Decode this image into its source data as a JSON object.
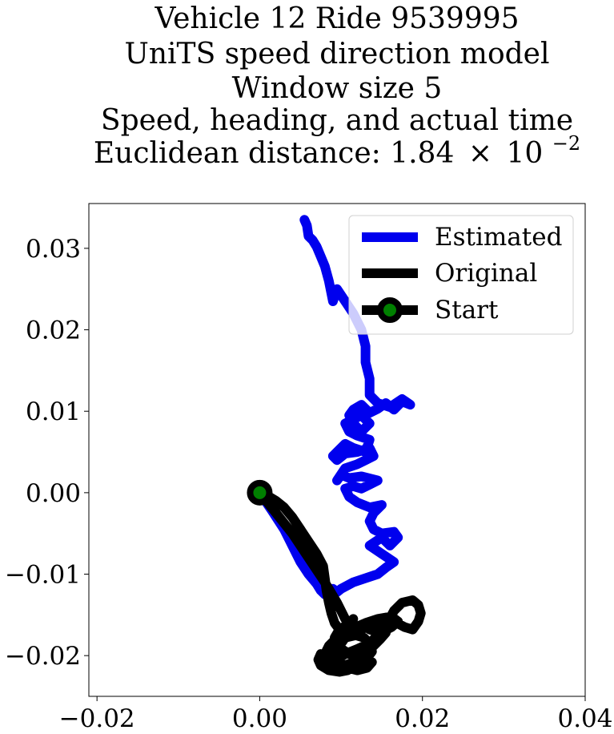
{
  "chart_data": {
    "type": "line",
    "title_lines": [
      "Vehicle 12 Ride 9539995",
      "UniTS speed direction model",
      "Window size 5",
      "Speed, heading, and actual time"
    ],
    "title_distance_prefix": "Euclidean distance: 1.84",
    "title_distance_times": "×",
    "title_distance_base": "10",
    "title_distance_exponent": "−2",
    "xlabel": "",
    "ylabel": "",
    "xlim": [
      -0.021,
      0.04
    ],
    "ylim": [
      -0.025,
      0.0355
    ],
    "x_ticks": [
      -0.02,
      0.0,
      0.02,
      0.04
    ],
    "x_tick_labels": [
      "−0.02",
      "0.00",
      "0.02",
      "0.04"
    ],
    "y_ticks": [
      -0.02,
      -0.01,
      0.0,
      0.01,
      0.02,
      0.03
    ],
    "y_tick_labels": [
      "−0.02",
      "−0.01",
      "0.00",
      "0.01",
      "0.02",
      "0.03"
    ],
    "grid": false,
    "legend_position": "top-right",
    "colors": {
      "estimated": "#0000ee",
      "original": "#000000",
      "start_marker": "#008000"
    },
    "series": [
      {
        "name": "Estimated",
        "x": [
          0.0,
          0.0015,
          0.003,
          0.004,
          0.005,
          0.006,
          0.007,
          0.0075,
          0.008,
          0.0085,
          0.009,
          0.0095,
          0.01,
          0.0115,
          0.013,
          0.0145,
          0.0155,
          0.0165,
          0.015,
          0.0135,
          0.015,
          0.016,
          0.017,
          0.0165,
          0.015,
          0.014,
          0.0135,
          0.014,
          0.015,
          0.0135,
          0.012,
          0.011,
          0.0105,
          0.0115,
          0.0125,
          0.0135,
          0.0145,
          0.0125,
          0.011,
          0.01,
          0.0095,
          0.0105,
          0.012,
          0.013,
          0.014,
          0.0135,
          0.012,
          0.0105,
          0.0095,
          0.009,
          0.0095,
          0.0105,
          0.0115,
          0.013,
          0.0135,
          0.012,
          0.011,
          0.0105,
          0.0115,
          0.0125,
          0.0135,
          0.0125,
          0.0115,
          0.011,
          0.0115,
          0.0125,
          0.0135,
          0.0145,
          0.0155,
          0.0165,
          0.0175,
          0.0185,
          0.0175,
          0.016,
          0.0145,
          0.0135,
          0.0135,
          0.013,
          0.013,
          0.0125,
          0.0115,
          0.0105,
          0.0095,
          0.009,
          0.0085,
          0.008,
          0.0075,
          0.007,
          0.0065,
          0.006,
          0.0058,
          0.0055
        ],
        "y": [
          0.0,
          -0.0022,
          -0.0045,
          -0.0065,
          -0.0085,
          -0.01,
          -0.0112,
          -0.012,
          -0.0125,
          -0.012,
          -0.0118,
          -0.0122,
          -0.0118,
          -0.011,
          -0.0105,
          -0.01,
          -0.0092,
          -0.0085,
          -0.0075,
          -0.0065,
          -0.0055,
          -0.0065,
          -0.0055,
          -0.0048,
          -0.005,
          -0.0045,
          -0.0035,
          -0.0025,
          -0.0015,
          -0.0018,
          -0.0012,
          -0.0005,
          0.0005,
          0.0008,
          0.0005,
          0.001,
          0.0015,
          0.002,
          0.0018,
          0.0022,
          0.0015,
          0.003,
          0.0035,
          0.004,
          0.0045,
          0.0055,
          0.005,
          0.0048,
          0.004,
          0.0045,
          0.005,
          0.006,
          0.0055,
          0.005,
          0.0065,
          0.007,
          0.0075,
          0.0085,
          0.009,
          0.0095,
          0.0085,
          0.0075,
          0.0085,
          0.0095,
          0.0102,
          0.0108,
          0.0098,
          0.0103,
          0.011,
          0.0102,
          0.0112,
          0.0108,
          0.0115,
          0.0105,
          0.011,
          0.012,
          0.014,
          0.016,
          0.018,
          0.02,
          0.022,
          0.0235,
          0.025,
          0.0235,
          0.026,
          0.0278,
          0.029,
          0.0302,
          0.031,
          0.0315,
          0.0328,
          0.0335
        ]
      },
      {
        "name": "Original",
        "x": [
          0.0,
          0.002,
          0.004,
          0.006,
          0.008,
          0.0095,
          0.0105,
          0.011,
          0.0115,
          0.0105,
          0.0095,
          0.0085,
          0.008,
          0.0085,
          0.0095,
          0.0105,
          0.012,
          0.0135,
          0.0148,
          0.0158,
          0.0165,
          0.0175,
          0.0188,
          0.0195,
          0.0198,
          0.0195,
          0.0188,
          0.0178,
          0.0165,
          0.0152,
          0.0142,
          0.0135,
          0.0148,
          0.0162,
          0.017,
          0.0162,
          0.0145,
          0.013,
          0.0118,
          0.0108,
          0.0098,
          0.0092,
          0.0098,
          0.011,
          0.0125,
          0.0138,
          0.0132,
          0.012,
          0.0108,
          0.0098,
          0.0088,
          0.008,
          0.0075,
          0.0072,
          0.0075,
          0.0085,
          0.0098,
          0.0108,
          0.0118,
          0.013,
          0.0138,
          0.0135,
          0.0128,
          0.0118,
          0.0105,
          0.0098,
          0.0092,
          0.0095,
          0.0105,
          0.0115,
          0.0128,
          0.0138,
          0.0148,
          0.0155,
          0.015,
          0.0138,
          0.0125,
          0.0112,
          0.0098,
          0.0092,
          0.0088,
          0.0085,
          0.0082,
          0.008,
          0.0078,
          0.007,
          0.006,
          0.005,
          0.004,
          0.003,
          0.002,
          0.001,
          0.0
        ],
        "y": [
          0.0,
          -0.0025,
          -0.005,
          -0.008,
          -0.011,
          -0.0135,
          -0.0155,
          -0.0162,
          -0.0155,
          -0.0165,
          -0.0178,
          -0.0188,
          -0.0198,
          -0.0208,
          -0.0205,
          -0.0198,
          -0.0192,
          -0.0185,
          -0.0172,
          -0.0158,
          -0.0145,
          -0.0135,
          -0.0132,
          -0.0138,
          -0.0148,
          -0.0158,
          -0.0168,
          -0.0165,
          -0.0158,
          -0.0155,
          -0.0158,
          -0.0168,
          -0.0172,
          -0.0165,
          -0.0158,
          -0.0152,
          -0.0155,
          -0.016,
          -0.0165,
          -0.0162,
          -0.0168,
          -0.0178,
          -0.019,
          -0.0198,
          -0.0202,
          -0.0208,
          -0.0215,
          -0.0218,
          -0.0215,
          -0.0212,
          -0.0208,
          -0.0202,
          -0.0198,
          -0.0205,
          -0.0212,
          -0.0218,
          -0.022,
          -0.0218,
          -0.0212,
          -0.0205,
          -0.0195,
          -0.0185,
          -0.0178,
          -0.0175,
          -0.0178,
          -0.0188,
          -0.0198,
          -0.0208,
          -0.0212,
          -0.0208,
          -0.02,
          -0.019,
          -0.018,
          -0.0172,
          -0.0165,
          -0.0162,
          -0.0168,
          -0.0172,
          -0.0168,
          -0.016,
          -0.0148,
          -0.0135,
          -0.012,
          -0.0105,
          -0.009,
          -0.0075,
          -0.006,
          -0.0045,
          -0.003,
          -0.0018,
          -0.001,
          -0.0004,
          0.0
        ]
      }
    ],
    "start_point": {
      "name": "Start",
      "x": 0.0,
      "y": 0.0
    }
  }
}
